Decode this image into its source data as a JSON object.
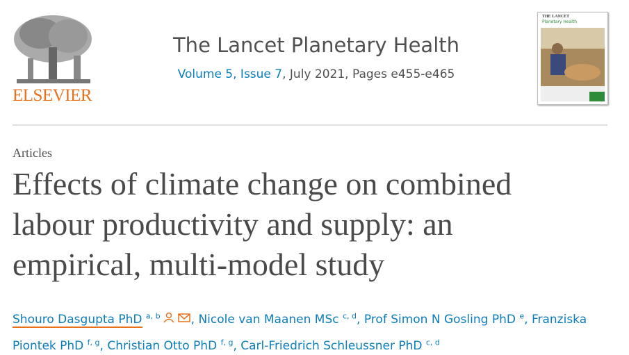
{
  "header": {
    "publisher": "ELSEVIER",
    "journal": "The Lancet Planetary Health",
    "issue_link": "Volume 5, Issue 7",
    "issue_rest": ", July 2021, Pages e455-e465",
    "cover": {
      "brand": "THE LANCET",
      "subtitle": "Planetary Health"
    }
  },
  "article": {
    "type": "Articles",
    "title": "Effects of climate change on combined labour productivity and supply: an empirical, multi-model study",
    "author_separator": ",",
    "authors": [
      {
        "name": "Shouro Dasgupta PhD",
        "affiliations": "a, b"
      },
      {
        "name": "Nicole van Maanen MSc",
        "affiliations": "c, d"
      },
      {
        "name": "Prof Simon N Gosling PhD",
        "affiliations": "e"
      },
      {
        "name": "Franziska Piontek PhD",
        "affiliations": "f, g"
      },
      {
        "name": "Christian Otto PhD",
        "affiliations": "f, g"
      },
      {
        "name": "Carl-Friedrich Schleussner PhD",
        "affiliations": "c, d"
      }
    ]
  }
}
